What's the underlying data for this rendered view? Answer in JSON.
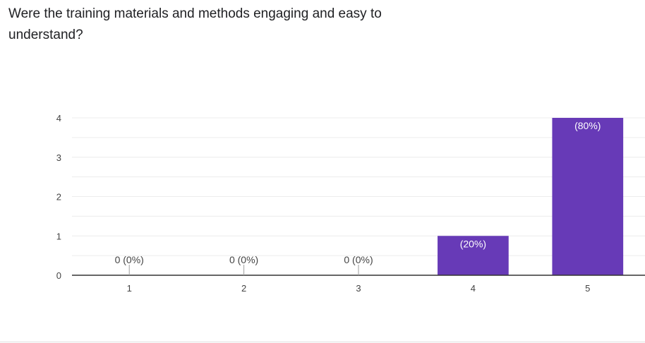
{
  "question": {
    "title": "Were the training materials and methods engaging and easy to understand?"
  },
  "chart_data": {
    "type": "bar",
    "title": "",
    "xlabel": "",
    "ylabel": "",
    "categories": [
      "1",
      "2",
      "3",
      "4",
      "5"
    ],
    "values": [
      0,
      0,
      0,
      1,
      4
    ],
    "data_labels": [
      "0 (0%)",
      "0 (0%)",
      "0 (0%)",
      "(20%)",
      "(80%)"
    ],
    "ylim": [
      0,
      4
    ],
    "y_ticks": [
      0,
      1,
      2,
      3,
      4
    ],
    "grid": true,
    "legend": "none",
    "colors": {
      "bar": "#673ab7",
      "grid": "#ececec",
      "axis": "#333333",
      "label_inside": "#ffffff",
      "label_outside": "#444444",
      "leader": "#9e9e9e"
    }
  }
}
